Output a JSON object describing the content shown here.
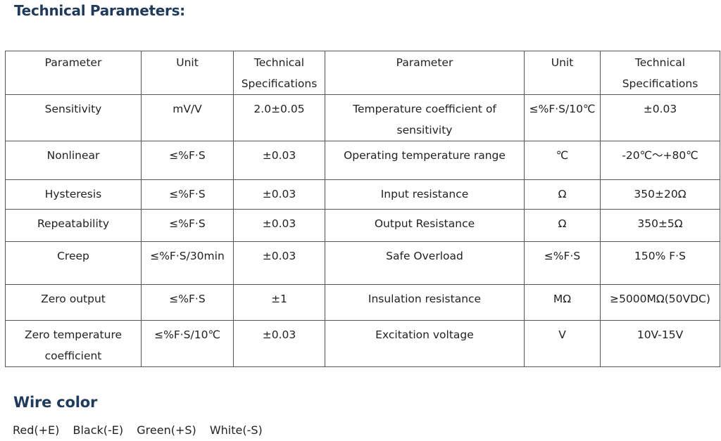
{
  "title": "Technical Parameters:",
  "table": {
    "headers": [
      "Parameter",
      "Unit",
      "Technical Specifications",
      "Parameter",
      "Unit",
      "Technical Specifications"
    ],
    "rows": [
      [
        "Sensitivity",
        "mV/V",
        "2.0±0.05",
        "Temperature coefficient of sensitivity",
        "≤%F·S/10℃",
        "±0.03"
      ],
      [
        "Nonlinear",
        "≤%F·S",
        "±0.03",
        "Operating temperature range",
        "℃",
        "-20℃～+80℃"
      ],
      [
        "Hysteresis",
        "≤%F·S",
        "±0.03",
        "Input resistance",
        "Ω",
        "350±20Ω"
      ],
      [
        "Repeatability",
        "≤%F·S",
        "±0.03",
        "Output Resistance",
        "Ω",
        "350±5Ω"
      ],
      [
        "Creep",
        "≤%F·S/30min",
        "±0.03",
        "Safe Overload",
        "≤%F·S",
        "150% F·S"
      ],
      [
        "Zero output",
        "≤%F·S",
        "±1",
        "Insulation resistance",
        "MΩ",
        "≥5000MΩ(50VDC)"
      ],
      [
        "Zero temperature coefficient",
        "≤%F·S/10℃",
        "±0.03",
        "Excitation voltage",
        "V",
        "10V-15V"
      ]
    ]
  },
  "wire": {
    "title": "Wire color",
    "items": [
      "Red(+E)",
      "Black(-E)",
      "Green(+S)",
      "White(-S)"
    ]
  }
}
